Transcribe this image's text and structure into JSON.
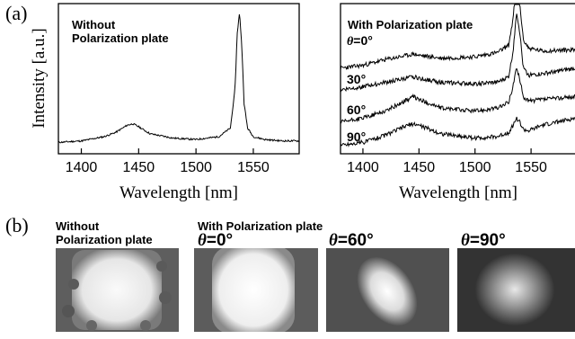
{
  "figure": {
    "panel_a_label": "(a)",
    "panel_b_label": "(b)"
  },
  "chart_data": [
    {
      "type": "line",
      "title": "",
      "annotation_lines": [
        "Without",
        "Polarization plate"
      ],
      "xlabel": "Wavelength [nm]",
      "ylabel": "Intensity [a.u.]",
      "xlim": [
        1380,
        1590
      ],
      "x_ticks": [
        1400,
        1450,
        1500,
        1550
      ],
      "x_tick_labels": [
        "1400",
        "1450",
        "1500",
        "1550"
      ],
      "grid": false,
      "series": [
        {
          "x": [
            1380,
            1400,
            1420,
            1430,
            1440,
            1445,
            1450,
            1460,
            1480,
            1500,
            1520,
            1530,
            1534,
            1536,
            1538,
            1540,
            1542,
            1545,
            1550,
            1560,
            1575,
            1590
          ],
          "y": [
            0.08,
            0.09,
            0.12,
            0.15,
            0.2,
            0.21,
            0.19,
            0.14,
            0.11,
            0.1,
            0.12,
            0.18,
            0.45,
            0.85,
            0.99,
            0.75,
            0.35,
            0.18,
            0.12,
            0.1,
            0.09,
            0.09
          ]
        }
      ]
    },
    {
      "type": "line",
      "title": "",
      "annotation_lines": [
        "With  Polarization plate"
      ],
      "xlabel": "Wavelength [nm]",
      "ylabel": "",
      "xlim": [
        1380,
        1590
      ],
      "x_ticks": [
        1400,
        1450,
        1500,
        1550
      ],
      "x_tick_labels": [
        "1400",
        "1450",
        "1500",
        "1550"
      ],
      "grid": false,
      "series": [
        {
          "name": "θ=0°",
          "x": [
            1380,
            1400,
            1420,
            1440,
            1445,
            1450,
            1470,
            1500,
            1520,
            1530,
            1534,
            1537,
            1540,
            1543,
            1548,
            1560,
            1590
          ],
          "y": [
            0.6,
            0.62,
            0.66,
            0.69,
            0.7,
            0.69,
            0.67,
            0.68,
            0.71,
            0.76,
            0.95,
            1.2,
            1.05,
            0.8,
            0.74,
            0.72,
            0.73
          ]
        },
        {
          "name": "30°",
          "x": [
            1380,
            1400,
            1420,
            1440,
            1445,
            1450,
            1470,
            1500,
            1520,
            1530,
            1534,
            1537,
            1540,
            1543,
            1548,
            1560,
            1590
          ],
          "y": [
            0.45,
            0.47,
            0.5,
            0.53,
            0.54,
            0.53,
            0.5,
            0.49,
            0.5,
            0.54,
            0.72,
            1.0,
            0.85,
            0.6,
            0.55,
            0.56,
            0.6
          ]
        },
        {
          "name": "60°",
          "x": [
            1380,
            1400,
            1420,
            1440,
            1445,
            1450,
            1470,
            1500,
            1520,
            1530,
            1534,
            1537,
            1540,
            1543,
            1548,
            1560,
            1590
          ],
          "y": [
            0.22,
            0.25,
            0.3,
            0.38,
            0.4,
            0.38,
            0.32,
            0.3,
            0.32,
            0.36,
            0.48,
            0.6,
            0.52,
            0.4,
            0.37,
            0.38,
            0.4
          ]
        },
        {
          "name": "90°",
          "x": [
            1380,
            1400,
            1420,
            1440,
            1445,
            1450,
            1470,
            1500,
            1520,
            1530,
            1534,
            1537,
            1540,
            1543,
            1548,
            1560,
            1590
          ],
          "y": [
            0.06,
            0.08,
            0.13,
            0.2,
            0.21,
            0.2,
            0.14,
            0.11,
            0.12,
            0.15,
            0.2,
            0.25,
            0.22,
            0.17,
            0.16,
            0.2,
            0.25
          ]
        }
      ],
      "label_texts": {
        "s0_theta": "θ",
        "s0_rest": "=0°",
        "s1": "30°",
        "s2": "60°",
        "s3": "90°"
      }
    }
  ],
  "panel_b": {
    "without_label_lines": [
      "Without",
      "Polarization plate"
    ],
    "with_label": "With  Polarization plate",
    "theta_symbol": "θ",
    "images": [
      {
        "angle_text": ""
      },
      {
        "angle_text": "=0°"
      },
      {
        "angle_text": "=60°"
      },
      {
        "angle_text": "=90°"
      }
    ]
  }
}
